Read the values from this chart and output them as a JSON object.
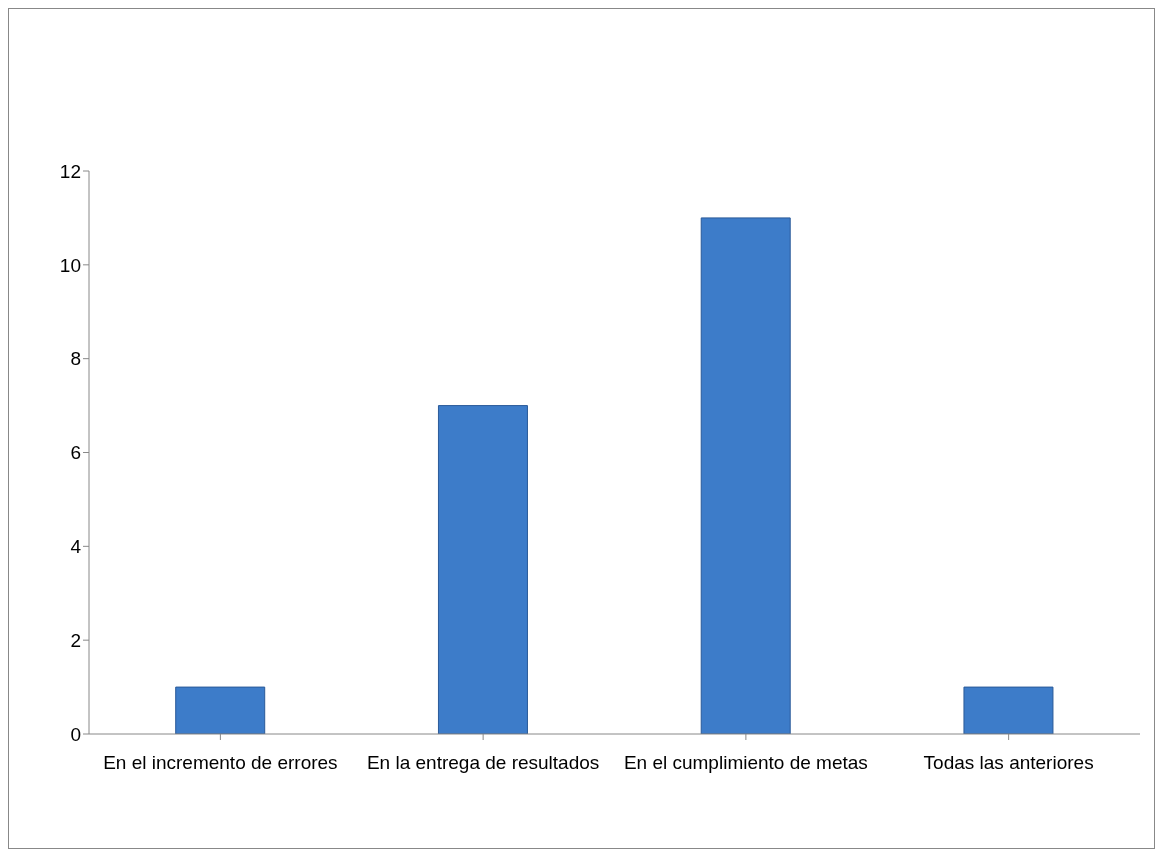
{
  "chart_data": {
    "type": "bar",
    "categories": [
      "En el incremento de errores",
      "En la entrega de resultados",
      "En el cumplimiento de metas",
      "Todas las anteriores"
    ],
    "values": [
      1,
      7,
      11,
      1
    ],
    "color": "#3d7cc9",
    "ylim": [
      0,
      12
    ],
    "yticks": [
      0,
      2,
      4,
      6,
      8,
      10,
      12
    ]
  }
}
